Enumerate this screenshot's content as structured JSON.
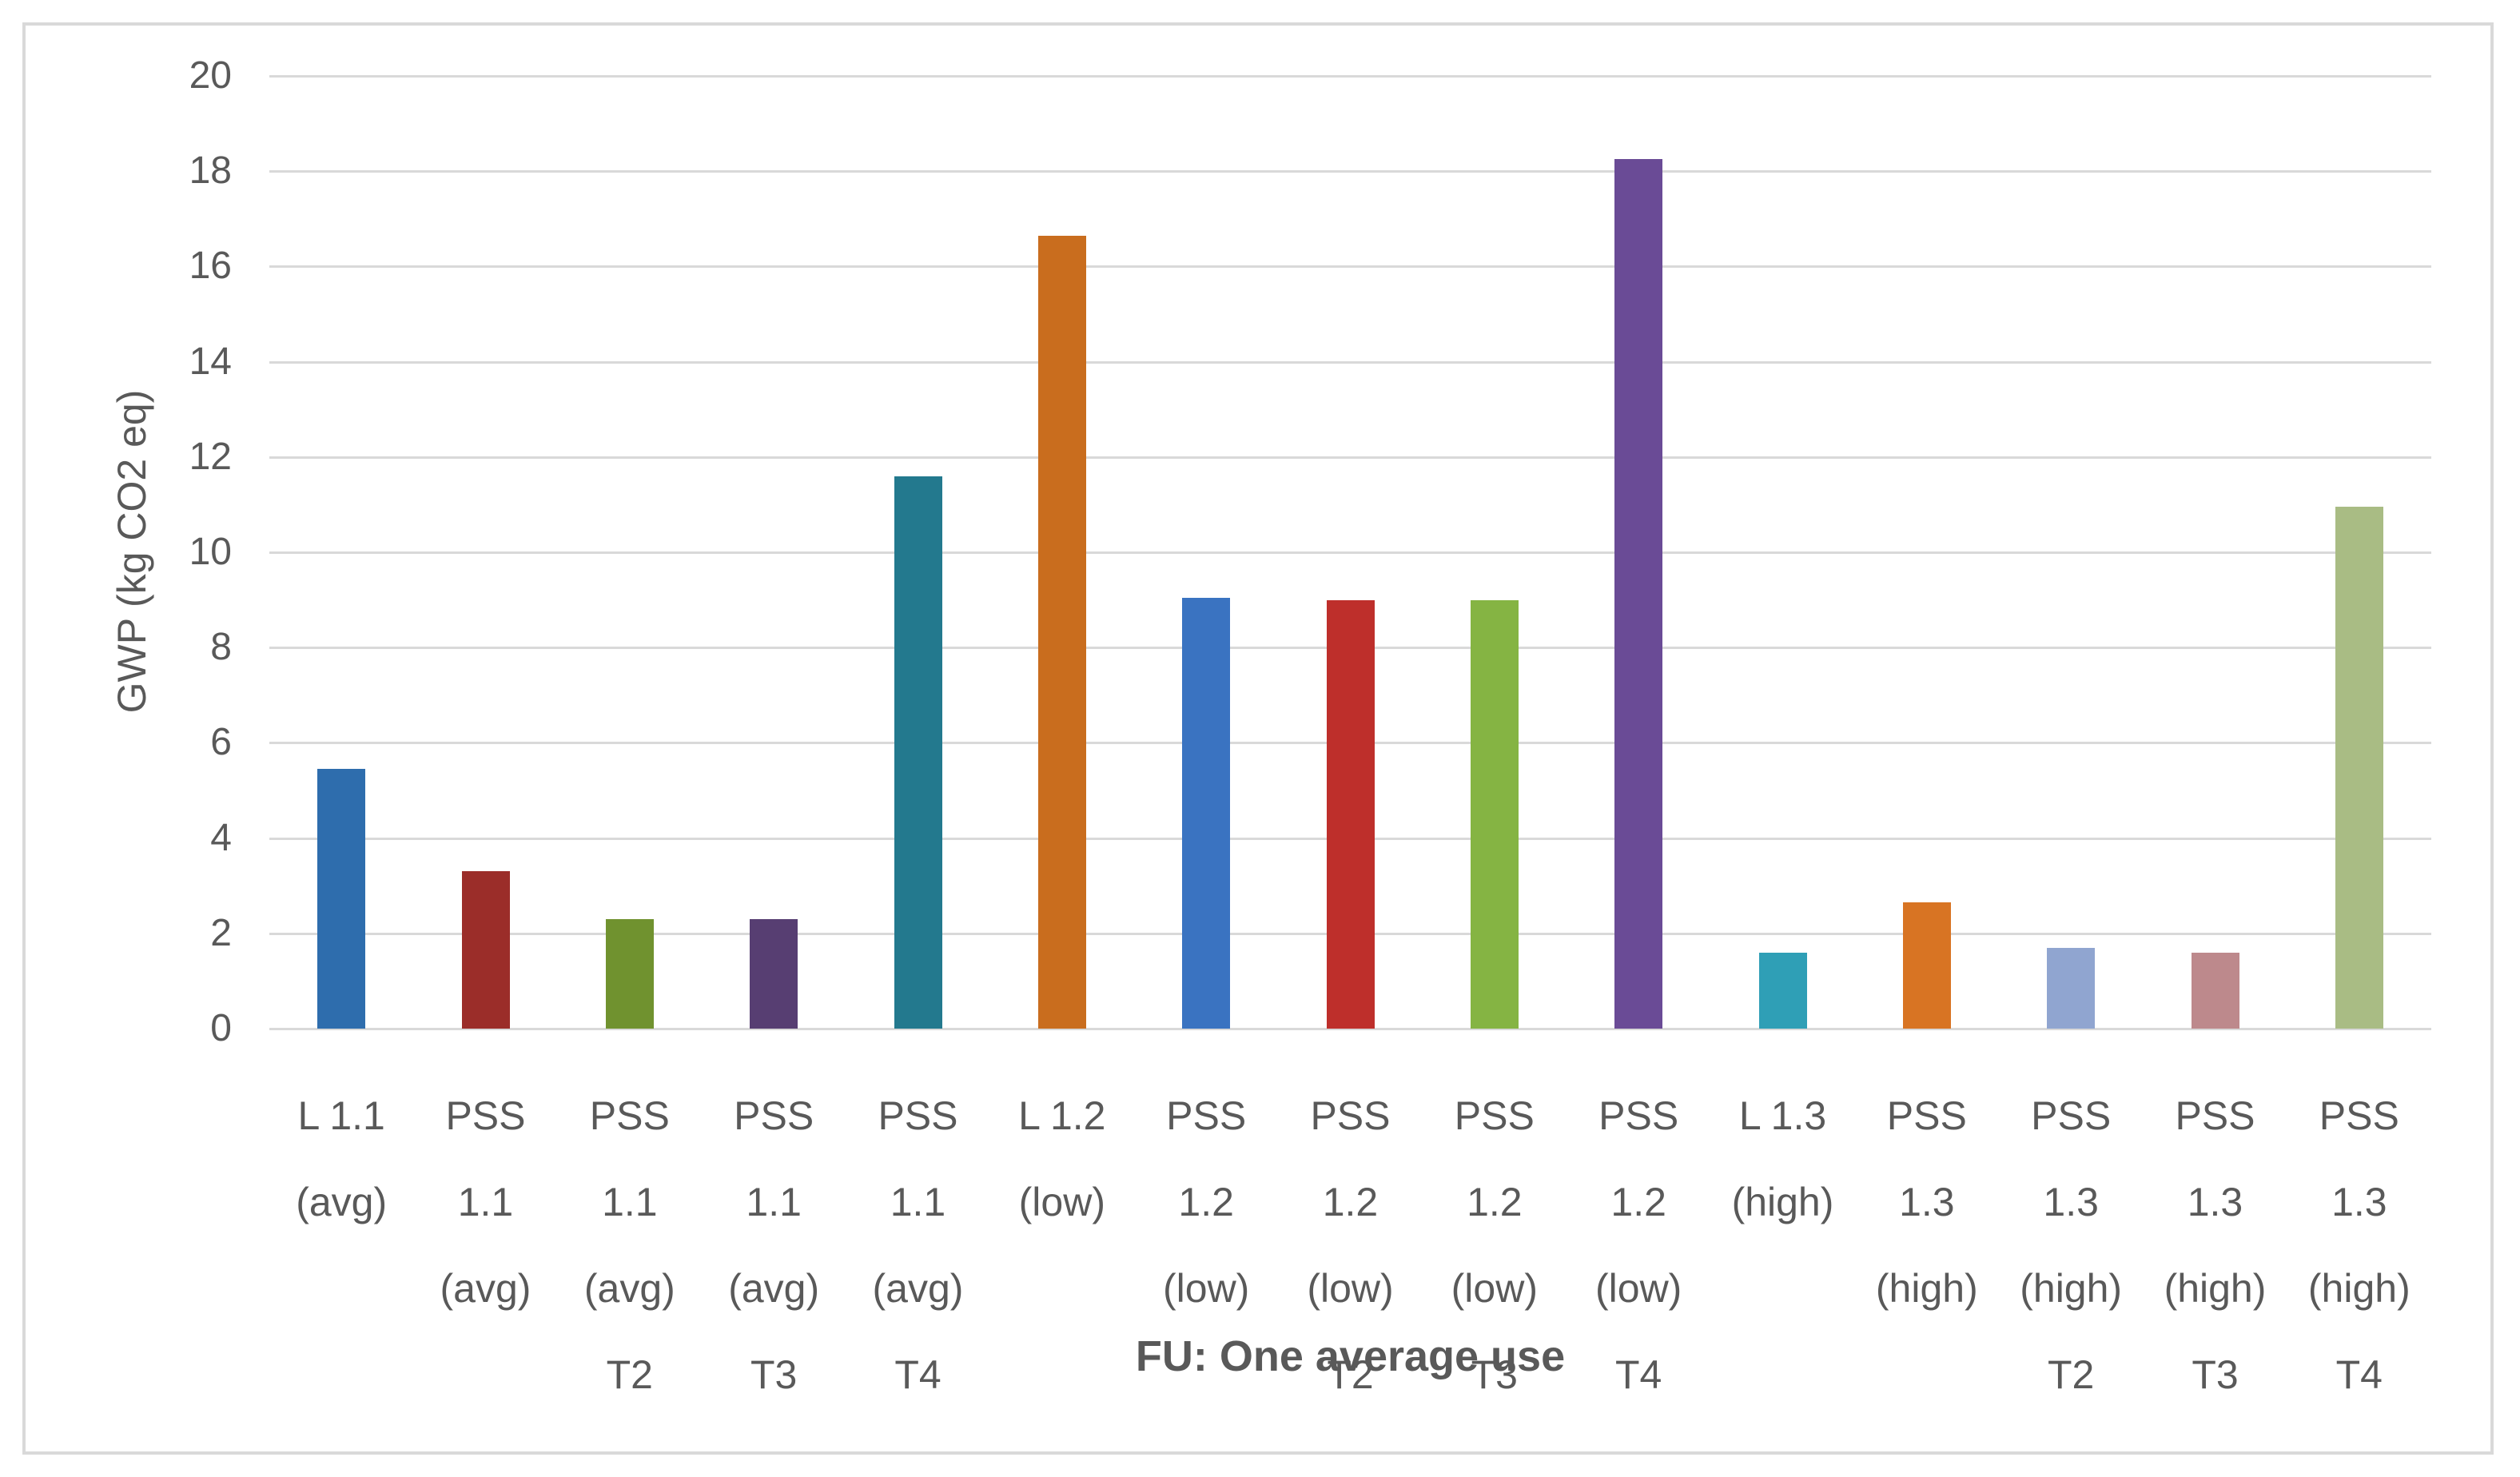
{
  "chart_data": {
    "type": "bar",
    "title": "",
    "xlabel": "FU: One average use",
    "ylabel": "GWP (kg CO2 eq)",
    "ylim": [
      0,
      20
    ],
    "yticks": [
      0,
      2,
      4,
      6,
      8,
      10,
      12,
      14,
      16,
      18,
      20
    ],
    "grid": "horizontal",
    "legend": "none",
    "categories": [
      "L 1.1 (avg)",
      "PSS 1.1 (avg)",
      "PSS 1.1 (avg) T2",
      "PSS 1.1 (avg) T3",
      "PSS 1.1 (avg) T4",
      "L 1.2 (low)",
      "PSS 1.2 (low)",
      "PSS 1.2 (low) T2",
      "PSS 1.2 (low) T3",
      "PSS 1.2 (low) T4",
      "L 1.3 (high)",
      "PSS 1.3 (high)",
      "PSS 1.3 (high) T2",
      "PSS 1.3 (high) T3",
      "PSS 1.3 (high) T4"
    ],
    "category_label_lines": [
      [
        "L 1.1",
        "(avg)"
      ],
      [
        "PSS",
        "1.1",
        "(avg)"
      ],
      [
        "PSS",
        "1.1",
        "(avg)",
        "T2"
      ],
      [
        "PSS",
        "1.1",
        "(avg)",
        "T3"
      ],
      [
        "PSS",
        "1.1",
        "(avg)",
        "T4"
      ],
      [
        "L 1.2",
        "(low)"
      ],
      [
        "PSS",
        "1.2",
        "(low)"
      ],
      [
        "PSS",
        "1.2",
        "(low)",
        "T2"
      ],
      [
        "PSS",
        "1.2",
        "(low)",
        "T3"
      ],
      [
        "PSS",
        "1.2",
        "(low)",
        "T4"
      ],
      [
        "L 1.3",
        "(high)"
      ],
      [
        "PSS",
        "1.3",
        "(high)"
      ],
      [
        "PSS",
        "1.3",
        "(high)",
        "T2"
      ],
      [
        "PSS",
        "1.3",
        "(high)",
        "T3"
      ],
      [
        "PSS",
        "1.3",
        "(high)",
        "T4"
      ]
    ],
    "values": [
      5.45,
      3.3,
      2.3,
      2.3,
      11.6,
      16.65,
      9.05,
      9.0,
      9.0,
      18.25,
      1.6,
      2.65,
      1.7,
      1.6,
      10.95
    ],
    "bar_colors": [
      "#2E6DAD",
      "#9B2D29",
      "#70922F",
      "#573E72",
      "#23798E",
      "#C96D1E",
      "#3A73C1",
      "#BE2F2B",
      "#85B443",
      "#6A4B96",
      "#2F9FB6",
      "#D87423",
      "#90A5D0",
      "#BD898C",
      "#A9BC84"
    ],
    "gridline_color": "#D9D9D9",
    "text_color": "#595959",
    "frame_border_color": "#D9D9D9",
    "background_color": "#FFFFFF"
  }
}
